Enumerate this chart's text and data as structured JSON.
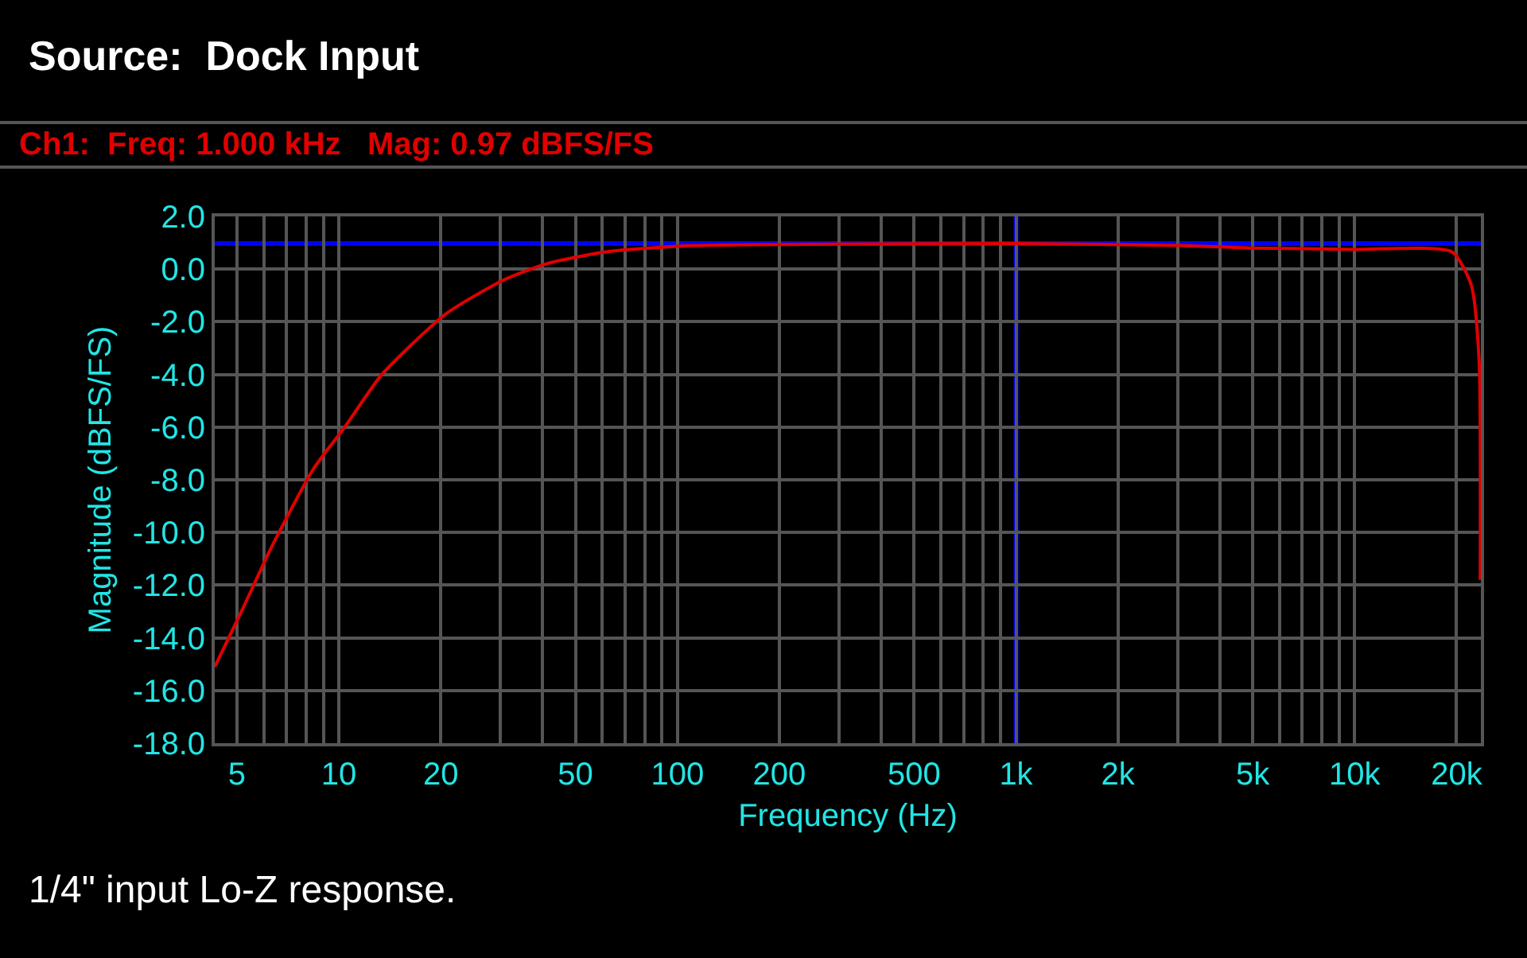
{
  "chart_data": {
    "type": "line",
    "title": "Source:  Dock Input",
    "subtitle": "Ch1:  Freq: 1.000 kHz   Mag: 0.97 dBFS/FS",
    "xlabel": "Frequency (Hz)",
    "ylabel": "Magnitude (dBFS/FS)",
    "annotations": [
      "1/4\" input Lo-Z response."
    ],
    "log": "x",
    "grid": true,
    "marker": "none",
    "line_style": "solid",
    "xlim": [
      4.3,
      23600
    ],
    "ylim": [
      -18,
      2
    ],
    "xticks": [
      5,
      {
        "value": 6,
        "label": null
      },
      {
        "value": 7,
        "label": null
      },
      {
        "value": 8,
        "label": null
      },
      {
        "value": 9,
        "label": null
      },
      10,
      20,
      {
        "value": 30,
        "label": null
      },
      {
        "value": 40,
        "label": null
      },
      50,
      {
        "value": 60,
        "label": null
      },
      {
        "value": 70,
        "label": null
      },
      {
        "value": 80,
        "label": null
      },
      {
        "value": 90,
        "label": null
      },
      100,
      200,
      {
        "value": 300,
        "label": null
      },
      {
        "value": 400,
        "label": null
      },
      500,
      {
        "value": 600,
        "label": null
      },
      {
        "value": 700,
        "label": null
      },
      {
        "value": 800,
        "label": null
      },
      {
        "value": 900,
        "label": null
      },
      {
        "value": 1000,
        "label": "1k"
      },
      {
        "value": 2000,
        "label": "2k"
      },
      {
        "value": 3000,
        "label": null
      },
      {
        "value": 4000,
        "label": null
      },
      {
        "value": 5000,
        "label": "5k"
      },
      {
        "value": 6000,
        "label": null
      },
      {
        "value": 7000,
        "label": null
      },
      {
        "value": 8000,
        "label": null
      },
      {
        "value": 9000,
        "label": null
      },
      {
        "value": 10000,
        "label": "10k"
      },
      {
        "value": 20000,
        "label": "20k"
      }
    ],
    "yticks": [
      {
        "value": 2,
        "label": "2.0"
      },
      {
        "value": 0,
        "label": "0.0"
      },
      {
        "value": -2,
        "label": "-2.0"
      },
      {
        "value": -4,
        "label": "-4.0"
      },
      {
        "value": -6,
        "label": "-6.0"
      },
      {
        "value": -8,
        "label": "-8.0"
      },
      {
        "value": -10,
        "label": "-10.0"
      },
      {
        "value": -12,
        "label": "-12.0"
      },
      {
        "value": -14,
        "label": "-14.0"
      },
      {
        "value": -16,
        "label": "-16.0"
      },
      {
        "value": -18,
        "label": "-18.0"
      }
    ],
    "ref_lines": [
      {
        "axis": "y",
        "value": 0.97,
        "color": "#0000ff"
      },
      {
        "axis": "x",
        "value": 1000,
        "color": "#0000ff"
      }
    ],
    "series": [
      {
        "color": "#e00000",
        "x": [
          4.3,
          5.2,
          6.3,
          8.4,
          10.4,
          13.4,
          20.7,
          30.8,
          41,
          61,
          109,
          300,
          1000,
          3000,
          5000,
          10000,
          19400,
          22100,
          23300,
          23500
        ],
        "values": [
          -15.1,
          -12.9,
          -10.6,
          -7.6,
          -6.0,
          -4.0,
          -1.7,
          -0.4,
          0.2,
          0.65,
          0.89,
          0.95,
          0.97,
          0.9,
          0.8,
          0.75,
          0.65,
          -0.6,
          -3.4,
          -11.8
        ]
      }
    ]
  }
}
